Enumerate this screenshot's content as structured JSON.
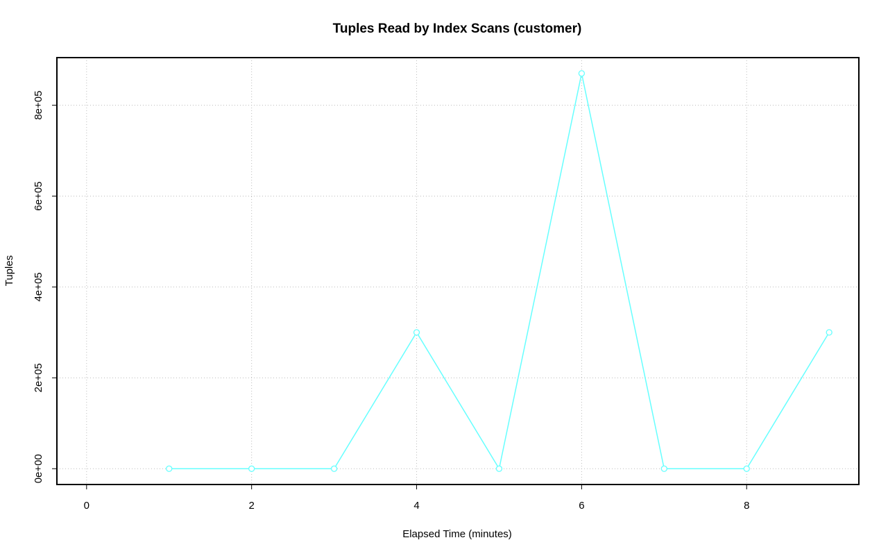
{
  "chart_data": {
    "type": "line",
    "title": "Tuples Read by Index Scans (customer)",
    "x_label": "Elapsed Time (minutes)",
    "y_label": "Tuples",
    "x": [
      1,
      2,
      3,
      4,
      5,
      6,
      7,
      8,
      9
    ],
    "series": [
      {
        "name": "customer",
        "color": "#66ffff",
        "values": [
          0,
          0,
          0,
          300000,
          0,
          870000,
          0,
          0,
          300000
        ]
      }
    ],
    "xlim": [
      -0.36,
      9.36
    ],
    "ylim": [
      -34800,
      904800
    ],
    "xticks": [
      0,
      2,
      4,
      6,
      8
    ],
    "yticks": [
      {
        "value": 0,
        "label": "0e+00"
      },
      {
        "value": 200000,
        "label": "2e+05"
      },
      {
        "value": 400000,
        "label": "4e+05"
      },
      {
        "value": 600000,
        "label": "6e+05"
      },
      {
        "value": 800000,
        "label": "8e+05"
      }
    ],
    "grid": true
  }
}
